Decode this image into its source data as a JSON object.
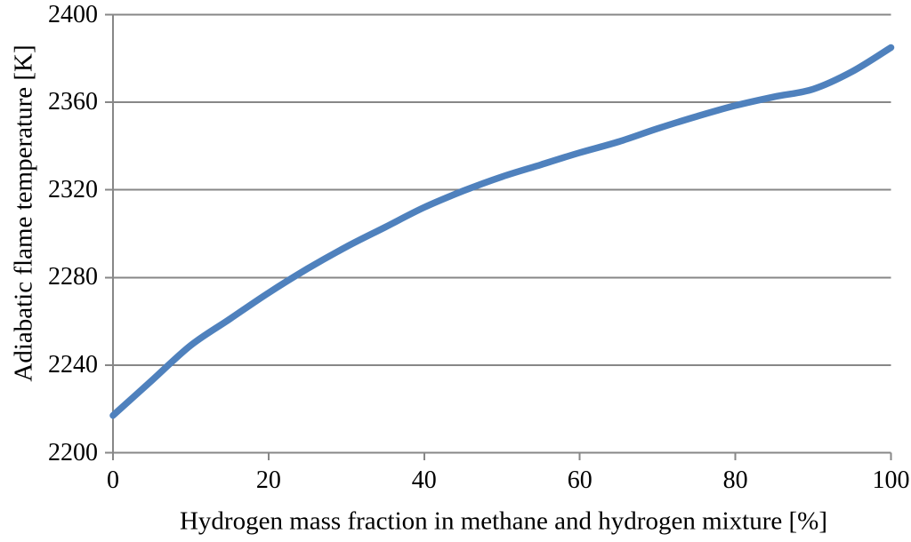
{
  "chart_data": {
    "type": "line",
    "title": "",
    "xlabel": "Hydrogen mass fraction in methane and hydrogen mixture [%]",
    "ylabel": "Adiabatic flame temperature [K]",
    "x": [
      0,
      5,
      10,
      15,
      20,
      25,
      30,
      35,
      40,
      45,
      50,
      55,
      60,
      65,
      70,
      75,
      80,
      85,
      90,
      95,
      100
    ],
    "series": [
      {
        "name": "Adiabatic flame temperature",
        "values": [
          2217,
          2233,
          2249,
          2261,
          2273,
          2284,
          2294,
          2303,
          2312,
          2319.5,
          2326,
          2331.5,
          2337,
          2342,
          2348,
          2353.5,
          2358.5,
          2362.5,
          2366,
          2374,
          2385
        ]
      }
    ],
    "xlim": [
      0,
      100
    ],
    "ylim": [
      2200,
      2400
    ],
    "x_ticks": [
      0,
      20,
      40,
      60,
      80,
      100
    ],
    "y_ticks": [
      2200,
      2240,
      2280,
      2320,
      2360,
      2400
    ],
    "grid": "horizontal",
    "legend_position": "none",
    "line_color": "#4F81BD",
    "axis_color": "#878787",
    "text_color": "#000000",
    "line_width": 7.5
  }
}
